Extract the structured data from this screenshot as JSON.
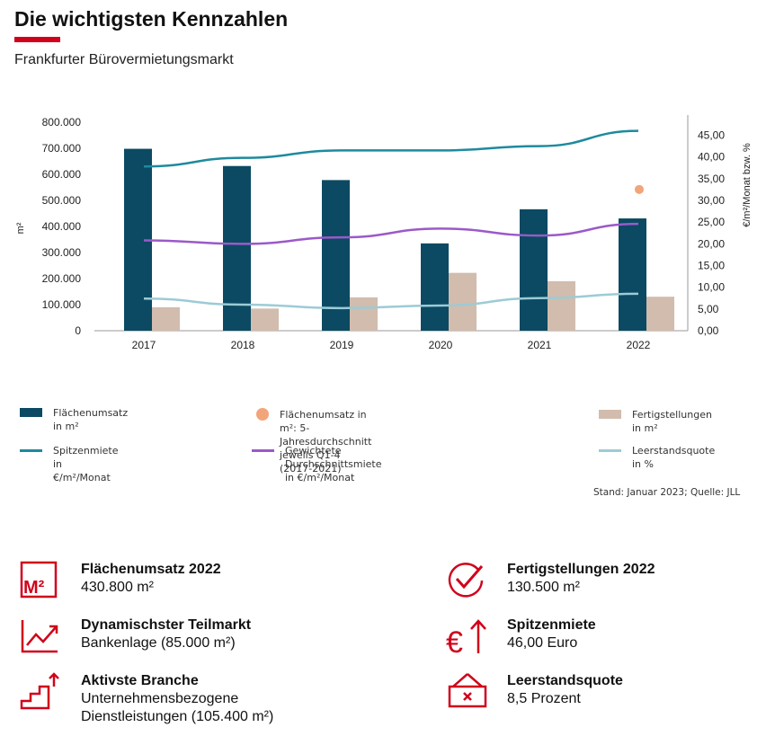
{
  "header": {
    "title": "Die wichtigsten Kennzahlen",
    "subtitle": "Frankfurter Bürovermietungsmarkt"
  },
  "colors": {
    "accent": "#d0021b",
    "flaechenumsatz": "#0b4a62",
    "fertigstellungen": "#d2bcad",
    "spitzenmiete": "#1e8a9e",
    "durchschnittsmiete": "#9b59c9",
    "leerstand": "#9ccbd6",
    "avg_dot": "#f2a57a"
  },
  "chart_data": {
    "type": "bar",
    "categories": [
      "2017",
      "2018",
      "2019",
      "2020",
      "2021",
      "2022"
    ],
    "y_left": {
      "label": "m²",
      "ylim": [
        0,
        800000
      ],
      "ticks": [
        "0",
        "100.000",
        "200.000",
        "300.000",
        "400.000",
        "500.000",
        "600.000",
        "700.000",
        "800.000"
      ]
    },
    "y_right": {
      "label": "€/m²/Monat bzw. %",
      "ylim": [
        0,
        48
      ],
      "ticks": [
        "0,00",
        "5,00",
        "10,00",
        "15,00",
        "20,00",
        "25,00",
        "30,00",
        "35,00",
        "40,00",
        "45,00"
      ]
    },
    "grid": false,
    "series": [
      {
        "name": "Flächenumsatz in m²",
        "type": "bar",
        "axis": "left",
        "values": [
          698000,
          632000,
          578000,
          335000,
          466000,
          430800
        ]
      },
      {
        "name": "Fertigstellungen in m²",
        "type": "bar",
        "axis": "left",
        "values": [
          90000,
          85000,
          128000,
          222000,
          190000,
          130500
        ]
      },
      {
        "name": "Spitzenmiete in €/m²/Monat",
        "type": "line",
        "axis": "right",
        "values": [
          37.8,
          39.8,
          41.5,
          41.5,
          42.5,
          46.0
        ]
      },
      {
        "name": "Gewichtete Durchschnittsmiete in €/m²/Monat",
        "type": "line",
        "axis": "right",
        "values": [
          20.8,
          20.0,
          21.5,
          23.5,
          21.9,
          24.6
        ]
      },
      {
        "name": "Leerstandsquote in %",
        "type": "line",
        "axis": "right",
        "values": [
          7.4,
          6.0,
          5.2,
          5.8,
          7.5,
          8.5
        ]
      },
      {
        "name": "Flächenumsatz in m²: 5-Jahresdurchschnitt jeweils Q1-4 (2017-2021)",
        "type": "scatter",
        "axis": "left",
        "x": "2022",
        "value": 542000
      }
    ]
  },
  "legend": [
    {
      "label": "Flächenumsatz in m²",
      "swatch": "box",
      "color": "#0b4a62"
    },
    {
      "label": "Flächenumsatz in m²: 5-Jahresdurchschnitt",
      "label2": "jeweils Q1-4 (2017-2021)",
      "swatch": "dot",
      "color": "#f2a57a"
    },
    {
      "label": "Fertigstellungen in m²",
      "swatch": "box",
      "color": "#d2bcad"
    },
    {
      "label": "Spitzenmiete in €/m²/Monat",
      "swatch": "line",
      "color": "#1e8a9e"
    },
    {
      "label": "Gewichtete Durchschnittsmiete in €/m²/Monat",
      "swatch": "line",
      "color": "#9b59c9"
    },
    {
      "label": "Leerstandsquote in %",
      "swatch": "line",
      "color": "#9ccbd6"
    }
  ],
  "source": "Stand: Januar 2023; Quelle: JLL",
  "kpis": [
    {
      "icon": "m2-icon",
      "title": "Flächenumsatz 2022",
      "value": "430.800 m²"
    },
    {
      "icon": "checkmark-icon",
      "title": "Fertigstellungen 2022",
      "value": "130.500 m²"
    },
    {
      "icon": "trend-chart-icon",
      "title": "Dynamischster Teilmarkt",
      "value": "Bankenlage (85.000 m²)"
    },
    {
      "icon": "euro-up-icon",
      "title": "Spitzenmiete",
      "value": "46,00 Euro"
    },
    {
      "icon": "stairs-up-icon",
      "title": "Aktivste Branche",
      "value": "Unternehmensbezogene",
      "value2": "Dienstleistungen (105.400 m²)"
    },
    {
      "icon": "vacancy-sign-icon",
      "title": "Leerstandsquote",
      "value": "8,5 Prozent"
    }
  ]
}
